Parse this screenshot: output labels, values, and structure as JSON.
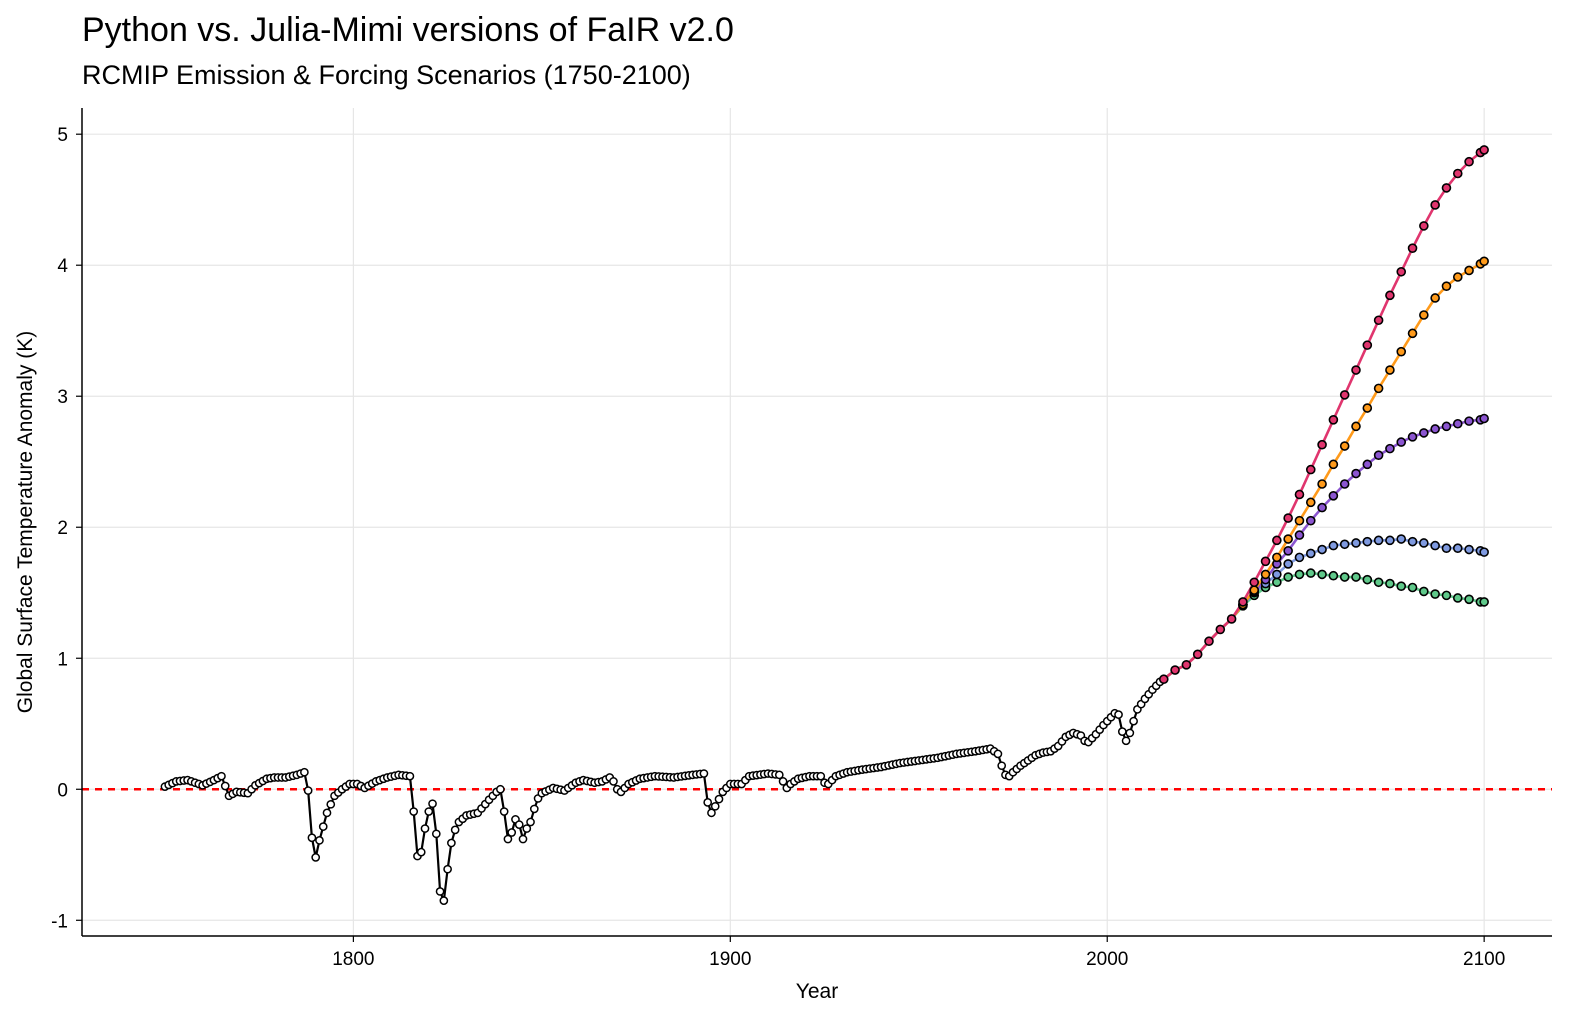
{
  "title": "Python vs. Julia-Mimi versions of FaIR v2.0",
  "subtitle": "RCMIP Emission & Forcing Scenarios (1750-2100)",
  "chart_data": {
    "type": "line",
    "title": "Python vs. Julia-Mimi versions of FaIR v2.0",
    "subtitle": "RCMIP Emission & Forcing Scenarios (1750-2100)",
    "xlabel": "Year",
    "ylabel": "Global Surface Temperature Anomaly (K)",
    "xlim": [
      1728,
      2118
    ],
    "ylim": [
      -1.12,
      5.2
    ],
    "xticks": [
      1800,
      1900,
      2000,
      2100
    ],
    "yticks": [
      -1,
      0,
      1,
      2,
      3,
      4,
      5
    ],
    "grid": true,
    "legend": "none",
    "reference_line": {
      "y": 0,
      "color": "#ff0000",
      "style": "dashed"
    },
    "colors": {
      "historical": "#000000",
      "green": "#5fc98a",
      "blue": "#7f9ae0",
      "purple": "#8b55d0",
      "orange": "#ff9a1a",
      "red": "#e0356e"
    },
    "historical_keypoints": [
      [
        1750,
        0.02
      ],
      [
        1753,
        0.06
      ],
      [
        1756,
        0.07
      ],
      [
        1760,
        0.03
      ],
      [
        1763,
        0.07
      ],
      [
        1765,
        0.1
      ],
      [
        1767,
        -0.05
      ],
      [
        1769,
        -0.02
      ],
      [
        1772,
        -0.03
      ],
      [
        1774,
        0.03
      ],
      [
        1777,
        0.08
      ],
      [
        1779,
        0.09
      ],
      [
        1782,
        0.09
      ],
      [
        1785,
        0.11
      ],
      [
        1787,
        0.13
      ],
      [
        1788,
        -0.01
      ],
      [
        1789,
        -0.37
      ],
      [
        1790,
        -0.52
      ],
      [
        1791,
        -0.39
      ],
      [
        1793,
        -0.18
      ],
      [
        1795,
        -0.05
      ],
      [
        1797,
        0.0
      ],
      [
        1799,
        0.04
      ],
      [
        1801,
        0.04
      ],
      [
        1803,
        0.01
      ],
      [
        1806,
        0.06
      ],
      [
        1809,
        0.09
      ],
      [
        1812,
        0.11
      ],
      [
        1815,
        0.1
      ],
      [
        1816,
        -0.17
      ],
      [
        1817,
        -0.51
      ],
      [
        1818,
        -0.48
      ],
      [
        1819,
        -0.3
      ],
      [
        1820,
        -0.17
      ],
      [
        1821,
        -0.11
      ],
      [
        1822,
        -0.34
      ],
      [
        1823,
        -0.78
      ],
      [
        1824,
        -0.85
      ],
      [
        1825,
        -0.61
      ],
      [
        1826,
        -0.41
      ],
      [
        1827,
        -0.31
      ],
      [
        1828,
        -0.25
      ],
      [
        1830,
        -0.2
      ],
      [
        1833,
        -0.18
      ],
      [
        1836,
        -0.08
      ],
      [
        1838,
        -0.02
      ],
      [
        1839,
        0.0
      ],
      [
        1840,
        -0.17
      ],
      [
        1841,
        -0.38
      ],
      [
        1842,
        -0.33
      ],
      [
        1843,
        -0.23
      ],
      [
        1844,
        -0.27
      ],
      [
        1845,
        -0.38
      ],
      [
        1846,
        -0.3
      ],
      [
        1847,
        -0.25
      ],
      [
        1848,
        -0.15
      ],
      [
        1849,
        -0.07
      ],
      [
        1850,
        -0.03
      ],
      [
        1853,
        0.01
      ],
      [
        1856,
        -0.01
      ],
      [
        1859,
        0.05
      ],
      [
        1861,
        0.07
      ],
      [
        1864,
        0.05
      ],
      [
        1866,
        0.06
      ],
      [
        1868,
        0.09
      ],
      [
        1869,
        0.06
      ],
      [
        1870,
        0.0
      ],
      [
        1871,
        -0.02
      ],
      [
        1873,
        0.04
      ],
      [
        1876,
        0.08
      ],
      [
        1880,
        0.1
      ],
      [
        1885,
        0.09
      ],
      [
        1890,
        0.11
      ],
      [
        1893,
        0.12
      ],
      [
        1894,
        -0.1
      ],
      [
        1895,
        -0.18
      ],
      [
        1896,
        -0.13
      ],
      [
        1898,
        -0.02
      ],
      [
        1900,
        0.04
      ],
      [
        1903,
        0.04
      ],
      [
        1905,
        0.1
      ],
      [
        1910,
        0.12
      ],
      [
        1913,
        0.11
      ],
      [
        1914,
        0.06
      ],
      [
        1915,
        0.01
      ],
      [
        1916,
        0.04
      ],
      [
        1918,
        0.08
      ],
      [
        1921,
        0.1
      ],
      [
        1924,
        0.1
      ],
      [
        1925,
        0.05
      ],
      [
        1926,
        0.04
      ],
      [
        1928,
        0.1
      ],
      [
        1931,
        0.13
      ],
      [
        1935,
        0.15
      ],
      [
        1940,
        0.17
      ],
      [
        1945,
        0.2
      ],
      [
        1950,
        0.22
      ],
      [
        1955,
        0.24
      ],
      [
        1960,
        0.27
      ],
      [
        1965,
        0.29
      ],
      [
        1969,
        0.31
      ],
      [
        1971,
        0.27
      ],
      [
        1972,
        0.18
      ],
      [
        1973,
        0.11
      ],
      [
        1974,
        0.1
      ],
      [
        1975,
        0.13
      ],
      [
        1977,
        0.18
      ],
      [
        1979,
        0.22
      ],
      [
        1981,
        0.26
      ],
      [
        1983,
        0.28
      ],
      [
        1985,
        0.29
      ],
      [
        1987,
        0.33
      ],
      [
        1989,
        0.4
      ],
      [
        1991,
        0.43
      ],
      [
        1993,
        0.41
      ],
      [
        1994,
        0.37
      ],
      [
        1995,
        0.36
      ],
      [
        1997,
        0.42
      ],
      [
        1999,
        0.49
      ],
      [
        2001,
        0.55
      ],
      [
        2002,
        0.58
      ],
      [
        2003,
        0.57
      ],
      [
        2004,
        0.44
      ],
      [
        2005,
        0.37
      ],
      [
        2006,
        0.43
      ],
      [
        2007,
        0.52
      ],
      [
        2008,
        0.61
      ],
      [
        2010,
        0.69
      ],
      [
        2012,
        0.76
      ],
      [
        2014,
        0.82
      ],
      [
        2015,
        0.84
      ]
    ],
    "scenario_shared": [
      [
        2015,
        0.84
      ],
      [
        2018,
        0.91
      ],
      [
        2021,
        0.95
      ],
      [
        2024,
        1.03
      ],
      [
        2027,
        1.13
      ],
      [
        2030,
        1.22
      ],
      [
        2033,
        1.3
      ]
    ],
    "series": [
      {
        "color_key": "green",
        "values": [
          [
            2033,
            1.3
          ],
          [
            2036,
            1.4
          ],
          [
            2039,
            1.48
          ],
          [
            2042,
            1.54
          ],
          [
            2045,
            1.58
          ],
          [
            2048,
            1.62
          ],
          [
            2051,
            1.64
          ],
          [
            2054,
            1.65
          ],
          [
            2057,
            1.64
          ],
          [
            2060,
            1.63
          ],
          [
            2063,
            1.62
          ],
          [
            2066,
            1.62
          ],
          [
            2069,
            1.6
          ],
          [
            2072,
            1.58
          ],
          [
            2075,
            1.57
          ],
          [
            2078,
            1.55
          ],
          [
            2081,
            1.54
          ],
          [
            2084,
            1.51
          ],
          [
            2087,
            1.49
          ],
          [
            2090,
            1.48
          ],
          [
            2093,
            1.46
          ],
          [
            2096,
            1.45
          ],
          [
            2099,
            1.43
          ],
          [
            2100,
            1.43
          ]
        ]
      },
      {
        "color_key": "blue",
        "values": [
          [
            2033,
            1.3
          ],
          [
            2036,
            1.41
          ],
          [
            2039,
            1.5
          ],
          [
            2042,
            1.57
          ],
          [
            2045,
            1.64
          ],
          [
            2048,
            1.72
          ],
          [
            2051,
            1.77
          ],
          [
            2054,
            1.8
          ],
          [
            2057,
            1.83
          ],
          [
            2060,
            1.86
          ],
          [
            2063,
            1.87
          ],
          [
            2066,
            1.88
          ],
          [
            2069,
            1.89
          ],
          [
            2072,
            1.9
          ],
          [
            2075,
            1.9
          ],
          [
            2078,
            1.91
          ],
          [
            2081,
            1.89
          ],
          [
            2084,
            1.88
          ],
          [
            2087,
            1.86
          ],
          [
            2090,
            1.84
          ],
          [
            2093,
            1.84
          ],
          [
            2096,
            1.83
          ],
          [
            2099,
            1.82
          ],
          [
            2100,
            1.81
          ]
        ]
      },
      {
        "color_key": "purple",
        "values": [
          [
            2033,
            1.3
          ],
          [
            2036,
            1.41
          ],
          [
            2039,
            1.51
          ],
          [
            2042,
            1.6
          ],
          [
            2045,
            1.72
          ],
          [
            2048,
            1.82
          ],
          [
            2051,
            1.94
          ],
          [
            2054,
            2.05
          ],
          [
            2057,
            2.15
          ],
          [
            2060,
            2.24
          ],
          [
            2063,
            2.33
          ],
          [
            2066,
            2.41
          ],
          [
            2069,
            2.48
          ],
          [
            2072,
            2.55
          ],
          [
            2075,
            2.6
          ],
          [
            2078,
            2.65
          ],
          [
            2081,
            2.69
          ],
          [
            2084,
            2.72
          ],
          [
            2087,
            2.75
          ],
          [
            2090,
            2.77
          ],
          [
            2093,
            2.79
          ],
          [
            2096,
            2.81
          ],
          [
            2099,
            2.82
          ],
          [
            2100,
            2.83
          ]
        ]
      },
      {
        "color_key": "orange",
        "values": [
          [
            2033,
            1.3
          ],
          [
            2036,
            1.41
          ],
          [
            2039,
            1.52
          ],
          [
            2042,
            1.64
          ],
          [
            2045,
            1.77
          ],
          [
            2048,
            1.91
          ],
          [
            2051,
            2.05
          ],
          [
            2054,
            2.19
          ],
          [
            2057,
            2.33
          ],
          [
            2060,
            2.48
          ],
          [
            2063,
            2.62
          ],
          [
            2066,
            2.77
          ],
          [
            2069,
            2.91
          ],
          [
            2072,
            3.06
          ],
          [
            2075,
            3.2
          ],
          [
            2078,
            3.34
          ],
          [
            2081,
            3.48
          ],
          [
            2084,
            3.62
          ],
          [
            2087,
            3.75
          ],
          [
            2090,
            3.84
          ],
          [
            2093,
            3.91
          ],
          [
            2096,
            3.96
          ],
          [
            2099,
            4.01
          ],
          [
            2100,
            4.03
          ]
        ]
      },
      {
        "color_key": "red",
        "values": [
          [
            2033,
            1.3
          ],
          [
            2036,
            1.43
          ],
          [
            2039,
            1.58
          ],
          [
            2042,
            1.74
          ],
          [
            2045,
            1.9
          ],
          [
            2048,
            2.07
          ],
          [
            2051,
            2.25
          ],
          [
            2054,
            2.44
          ],
          [
            2057,
            2.63
          ],
          [
            2060,
            2.82
          ],
          [
            2063,
            3.01
          ],
          [
            2066,
            3.2
          ],
          [
            2069,
            3.39
          ],
          [
            2072,
            3.58
          ],
          [
            2075,
            3.77
          ],
          [
            2078,
            3.95
          ],
          [
            2081,
            4.13
          ],
          [
            2084,
            4.3
          ],
          [
            2087,
            4.46
          ],
          [
            2090,
            4.59
          ],
          [
            2093,
            4.7
          ],
          [
            2096,
            4.79
          ],
          [
            2099,
            4.86
          ],
          [
            2100,
            4.88
          ]
        ]
      }
    ]
  }
}
